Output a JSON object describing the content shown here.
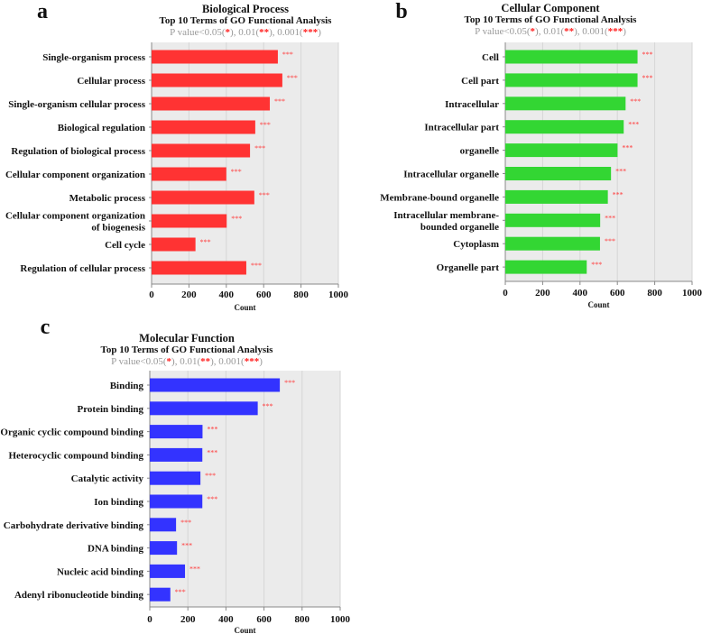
{
  "chart_data": [
    {
      "type": "bar",
      "orientation": "horizontal",
      "panel_letter": "a",
      "title": "Biological Process",
      "subtitle": "Top 10 Terms of GO Functional Analysis",
      "pvalue_note": "P value<0.05(*), 0.01(**), 0.001(***)",
      "color": "#ff3333",
      "categories": [
        "Single-organism process",
        "Cellular process",
        "Single-organism cellular process",
        "Biological regulation",
        "Regulation of biological process",
        "Cellular component organization",
        "Metabolic process",
        "Cellular component organization\nof biogenesis",
        "Cell cycle",
        "Regulation of cellular process"
      ],
      "values": [
        676,
        700,
        633,
        555,
        527,
        400,
        550,
        402,
        235,
        507
      ],
      "significance": [
        "***",
        "***",
        "***",
        "***",
        "***",
        "***",
        "***",
        "***",
        "***",
        "***"
      ],
      "xlabel": "Count",
      "xlim": [
        0,
        1000
      ],
      "xticks": [
        "0",
        "200",
        "400",
        "600",
        "800",
        "1000"
      ],
      "grid": true
    },
    {
      "type": "bar",
      "orientation": "horizontal",
      "panel_letter": "b",
      "title": "Cellular Component",
      "subtitle": "Top 10 Terms of GO Functional Analysis",
      "pvalue_note": "P value<0.05(*), 0.01(**), 0.001(***)",
      "color": "#33d633",
      "categories": [
        "Cell",
        "Cell part",
        "Intracellular",
        "Intracellular part",
        "organelle",
        "Intracellular organelle",
        "Membrane-bound organelle",
        "Intracellular membrane-\nbounded organelle",
        "Cytoplasm",
        "Organelle part"
      ],
      "values": [
        708,
        708,
        644,
        634,
        601,
        566,
        549,
        508,
        507,
        436
      ],
      "significance": [
        "***",
        "***",
        "***",
        "***",
        "***",
        "***",
        "***",
        "***",
        "***",
        "***"
      ],
      "xlabel": "Count",
      "xlim": [
        0,
        1000
      ],
      "xticks": [
        "0",
        "200",
        "400",
        "600",
        "800",
        "1000"
      ],
      "grid": true
    },
    {
      "type": "bar",
      "orientation": "horizontal",
      "panel_letter": "c",
      "title": "Molecular Function",
      "subtitle": "Top 10 Terms of GO Functional Analysis",
      "pvalue_note": "P value<0.05(*), 0.01(**), 0.001(***)",
      "color": "#3333ff",
      "categories": [
        "Binding",
        "Protein binding",
        "Organic cyclic compound binding",
        "Heterocyclic compound binding",
        "Catalytic activity",
        "Ion binding",
        "Carbohydrate derivative binding",
        "DNA binding",
        "Nucleic acid binding",
        "Adenyl ribonucleotide binding"
      ],
      "values": [
        683,
        567,
        277,
        276,
        266,
        276,
        138,
        143,
        185,
        108
      ],
      "significance": [
        "***",
        "***",
        "***",
        "***",
        "***",
        "***",
        "***",
        "***",
        "***",
        "***"
      ],
      "xlabel": "Count",
      "xlim": [
        0,
        1000
      ],
      "xticks": [
        "0",
        "200",
        "400",
        "600",
        "800",
        "1000"
      ],
      "grid": true
    }
  ]
}
